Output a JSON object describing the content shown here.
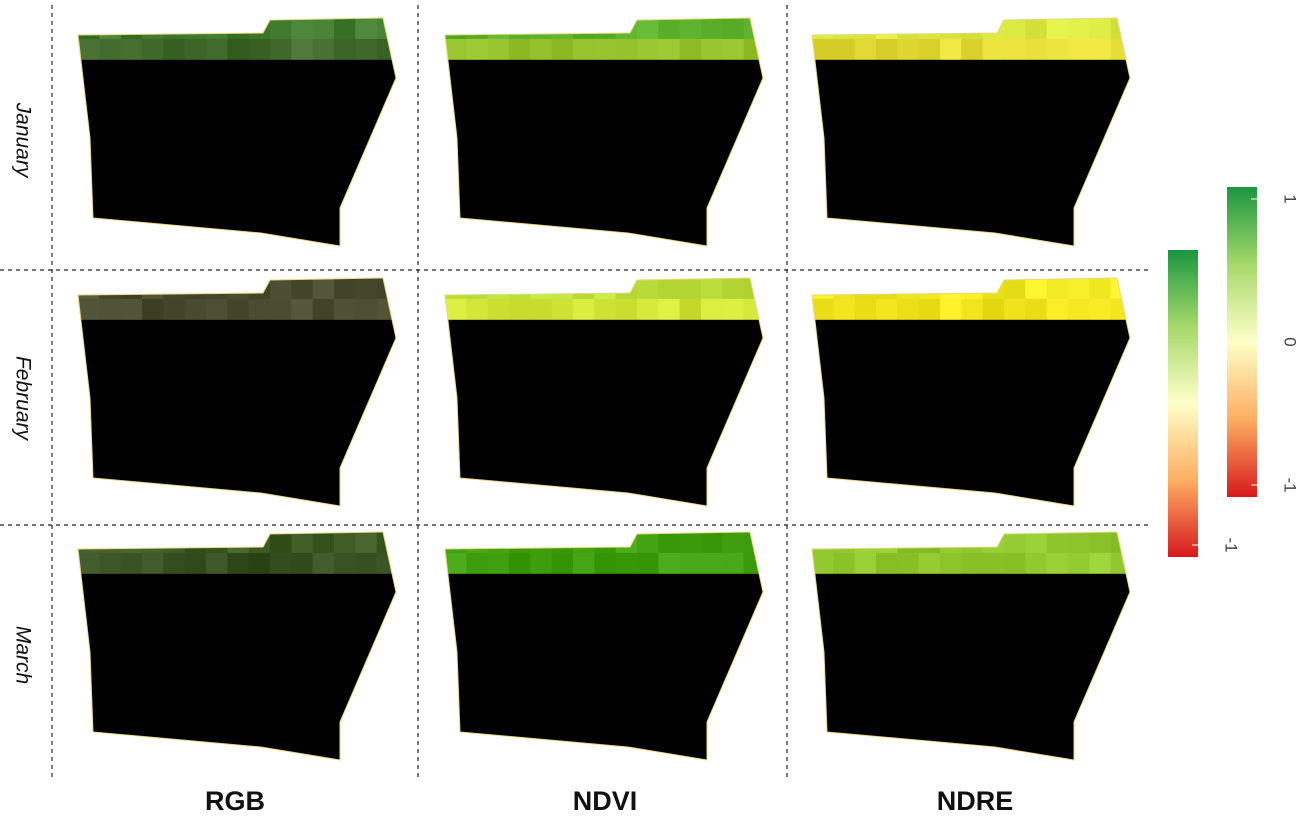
{
  "rows": [
    "January",
    "February",
    "March"
  ],
  "columns": [
    "RGB",
    "NDVI",
    "NDRE"
  ],
  "legends": [
    {
      "lim": [
        -1,
        1
      ],
      "ticks": [
        -1
      ]
    },
    {
      "lim": [
        -1,
        1
      ],
      "ticks": [
        1,
        0,
        -1
      ]
    }
  ]
}
